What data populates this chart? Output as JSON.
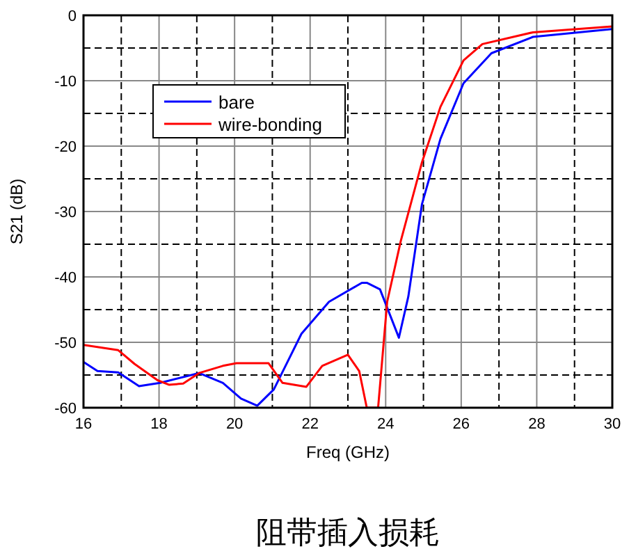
{
  "chart_data": {
    "type": "line",
    "title": "阻带插入损耗",
    "xlabel": "Freq (GHz)",
    "ylabel": "S21 (dB)",
    "xlim": [
      16,
      30
    ],
    "xticks": [
      16,
      18,
      20,
      22,
      24,
      26,
      28,
      30
    ],
    "ylim": [
      -60,
      0
    ],
    "yticks": [
      -60,
      -50,
      -40,
      -30,
      -20,
      -10,
      0
    ],
    "grid": true,
    "legend": "top left",
    "line_style": "solid",
    "marker": "none",
    "series": [
      {
        "name": "bare",
        "color": "#0000ff",
        "x": [
          16,
          16.37,
          16.92,
          17.47,
          18.03,
          19.06,
          19.69,
          20.17,
          20.6,
          21.04,
          21.77,
          22.5,
          23.37,
          23.5,
          23.85,
          24.35,
          24.6,
          24.96,
          25.45,
          26.06,
          26.8,
          27.9,
          30
        ],
        "values": [
          -53,
          -54.4,
          -54.6,
          -56.7,
          -56.2,
          -54.7,
          -56.2,
          -58.6,
          -59.7,
          -57.2,
          -48.7,
          -43.8,
          -40.9,
          -40.9,
          -41.9,
          -49.3,
          -43,
          -28.9,
          -18.9,
          -10.4,
          -5.8,
          -3.3,
          -2.1
        ]
      },
      {
        "name": "wire-bonding",
        "color": "#ff0000",
        "x": [
          16,
          16.92,
          17.35,
          17.96,
          18.27,
          18.64,
          19.06,
          19.69,
          20.05,
          20.9,
          21.27,
          21.9,
          22.32,
          23.0,
          23.3,
          23.5,
          23.8,
          24.04,
          24.4,
          24.96,
          25.45,
          26.06,
          26.56,
          27.9,
          30
        ],
        "values": [
          -50.4,
          -51.2,
          -53.3,
          -55.8,
          -56.5,
          -56.3,
          -54.7,
          -53.6,
          -53.2,
          -53.2,
          -56.2,
          -56.8,
          -53.6,
          -51.9,
          -54.4,
          -60,
          -60,
          -43.8,
          -34.5,
          -22.5,
          -14,
          -6.9,
          -4.4,
          -2.6,
          -1.7
        ]
      }
    ]
  }
}
